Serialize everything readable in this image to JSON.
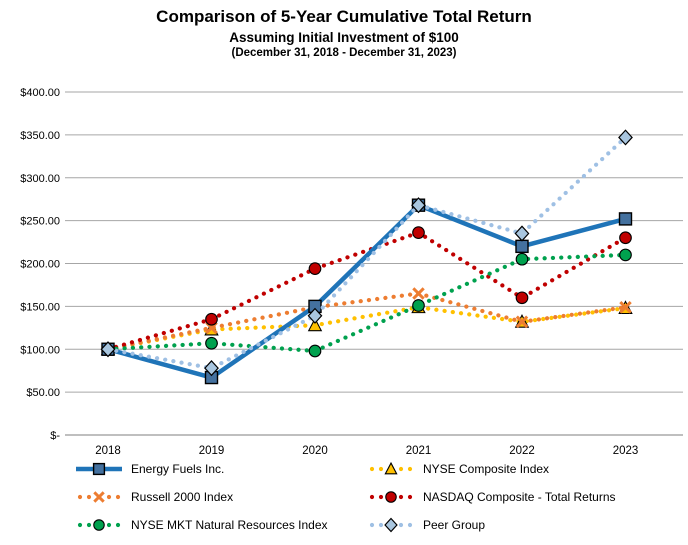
{
  "chart_data": {
    "type": "line",
    "title": "Comparison of 5-Year Cumulative Total Return",
    "subtitle": "Assuming Initial Investment of $100",
    "date_range": "(December 31, 2018 - December 31, 2023)",
    "categories": [
      "2018",
      "2019",
      "2020",
      "2021",
      "2022",
      "2023"
    ],
    "y_axis": {
      "min": 0,
      "max": 400,
      "step": 50,
      "tick_labels": [
        "$-",
        "$50.00",
        "$100.00",
        "$150.00",
        "$200.00",
        "$250.00",
        "$300.00",
        "$350.00",
        "$400.00"
      ]
    },
    "grid": true,
    "legend_position": "bottom",
    "series": [
      {
        "id": "nyse-composite",
        "name": "NYSE Composite Index",
        "color": "#FFC000",
        "marker": "triangle",
        "marker_fill": "#FFC000",
        "line_style": "dotted",
        "values": [
          100,
          123,
          128,
          149,
          132,
          148
        ]
      },
      {
        "id": "russell-2000",
        "name": "Russell 2000 Index",
        "color": "#ED7D31",
        "marker": "x",
        "marker_fill": "#ED7D31",
        "line_style": "dotted",
        "values": [
          100,
          125,
          149,
          165,
          132,
          149
        ]
      },
      {
        "id": "nasdaq-composite",
        "name": "NASDAQ Composite - Total Returns",
        "color": "#C00000",
        "marker": "circle",
        "marker_fill": "#C00000",
        "line_style": "dotted",
        "values": [
          100,
          135,
          194,
          236,
          160,
          230
        ]
      },
      {
        "id": "nyse-mkt",
        "name": "NYSE MKT Natural Resources Index",
        "color": "#00A14E",
        "marker": "circle",
        "marker_fill": "#00A14E",
        "line_style": "dotted",
        "values": [
          100,
          107,
          98,
          151,
          205,
          210
        ]
      },
      {
        "id": "energy-fuels",
        "name": "Energy Fuels Inc.",
        "color": "#1F74B8",
        "marker": "square",
        "marker_fill": "#44719F",
        "line_style": "solid",
        "values": [
          100,
          67,
          150,
          268,
          220,
          252
        ]
      },
      {
        "id": "peer-group",
        "name": "Peer Group",
        "color": "#9FC0E4",
        "marker": "diamond",
        "marker_fill": "#A9C6DF",
        "line_style": "dotted",
        "values": [
          100,
          78,
          139,
          268,
          235,
          347
        ]
      }
    ],
    "legend_columns": [
      [
        "energy-fuels",
        "russell-2000",
        "nyse-mkt"
      ],
      [
        "nyse-composite",
        "nasdaq-composite",
        "peer-group"
      ]
    ]
  }
}
